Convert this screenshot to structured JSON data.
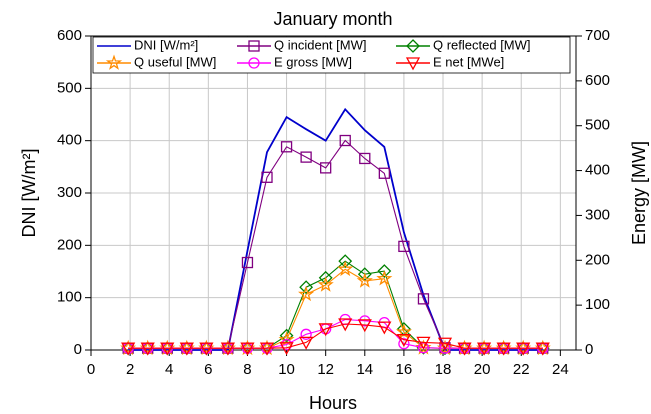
{
  "chart_data": {
    "type": "line",
    "title": "January month",
    "xlabel": "Hours",
    "ylabel": "DNI [W/m²]",
    "y2label": "Energy [MW]",
    "x": [
      1.9,
      2.9,
      3.9,
      4.9,
      5.9,
      7.0,
      8.0,
      9.0,
      10.0,
      11.0,
      12.0,
      13.0,
      14.0,
      15.0,
      16.0,
      17.0,
      18.1,
      19.1,
      20.1,
      21.1,
      22.1,
      23.1
    ],
    "xlim": [
      0,
      24.8
    ],
    "xticks": [
      0,
      2,
      4,
      6,
      8,
      10,
      12,
      14,
      16,
      18,
      20,
      22,
      24
    ],
    "ylim": [
      0,
      600
    ],
    "yticks": [
      0,
      100,
      200,
      300,
      400,
      500,
      600
    ],
    "y2lim": [
      0,
      700
    ],
    "y2ticks": [
      0,
      100,
      200,
      300,
      400,
      500,
      600,
      700
    ],
    "grid": true,
    "series": [
      {
        "name": "DNI [W/m²]",
        "color": "#0000cc",
        "axis": "y",
        "marker": "none",
        "values": [
          0,
          0,
          0,
          0,
          0,
          0,
          190,
          378,
          445,
          422,
          400,
          460,
          420,
          388,
          225,
          105,
          0,
          0,
          0,
          0,
          0,
          0
        ]
      },
      {
        "name": "Q incident  [MW]",
        "color": "#800080",
        "axis": "y2",
        "marker": "square",
        "values": [
          4,
          4,
          4,
          4,
          4,
          4,
          195,
          385,
          453,
          430,
          406,
          467,
          427,
          394,
          231,
          114,
          5,
          4,
          4,
          4,
          4,
          4
        ]
      },
      {
        "name": "Q  reflected [MW]",
        "color": "#008000",
        "axis": "y2",
        "marker": "diamond",
        "values": [
          4,
          4,
          4,
          4,
          4,
          4,
          4,
          4,
          32,
          140,
          161,
          198,
          169,
          176,
          47,
          5,
          4,
          4,
          4,
          4,
          4,
          4
        ]
      },
      {
        "name": "Q useful [MW]",
        "color": "#ff8c00",
        "axis": "y2",
        "marker": "star",
        "values": [
          4,
          4,
          4,
          4,
          4,
          4,
          4,
          4,
          23,
          124,
          145,
          180,
          154,
          159,
          40,
          5,
          4,
          4,
          4,
          4,
          4,
          4
        ]
      },
      {
        "name": "E gross [MW]",
        "color": "#ff00ff",
        "axis": "y2",
        "marker": "circle",
        "values": [
          4,
          4,
          4,
          4,
          4,
          4,
          4,
          4,
          12,
          35,
          47,
          68,
          65,
          61,
          14,
          5,
          4,
          4,
          4,
          4,
          4,
          4
        ]
      },
      {
        "name": "E net [MWe]",
        "color": "#ff0000",
        "axis": "y2",
        "marker": "triangle",
        "values": [
          4,
          4,
          4,
          4,
          4,
          4,
          4,
          4,
          5,
          17,
          47,
          58,
          56,
          51,
          23,
          17,
          15,
          4,
          4,
          4,
          4,
          4
        ]
      }
    ]
  }
}
